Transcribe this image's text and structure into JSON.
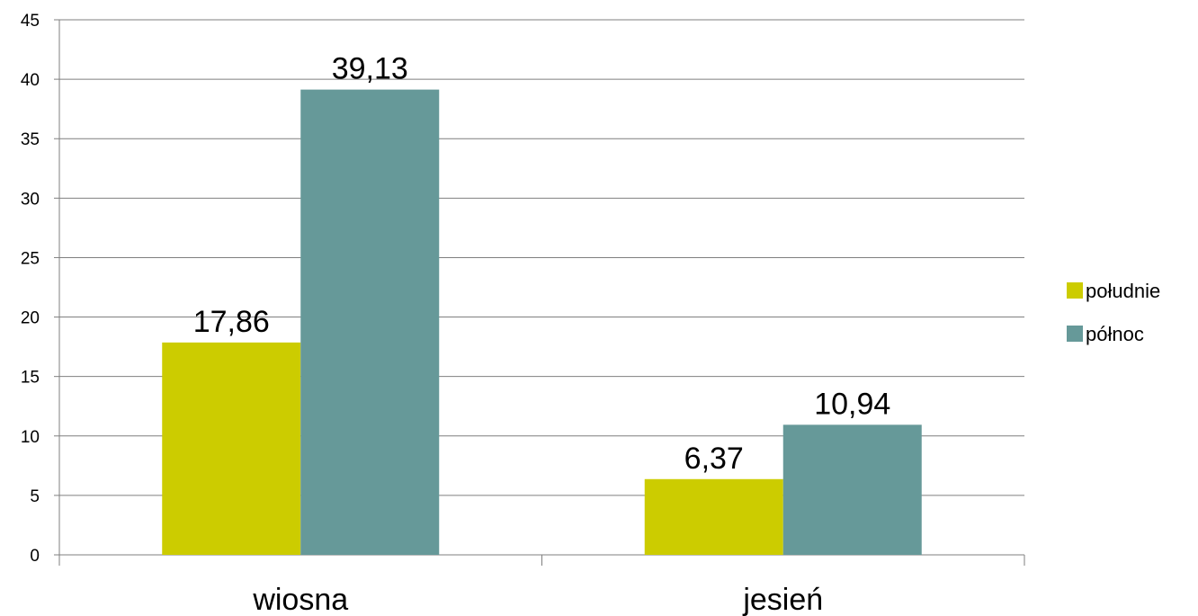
{
  "chart_data": {
    "type": "bar",
    "categories": [
      "wiosna",
      "jesień"
    ],
    "series": [
      {
        "name": "południe",
        "values": [
          17.86,
          6.37
        ],
        "labels": [
          "17,86",
          "6,37"
        ],
        "color": "#cccc00"
      },
      {
        "name": "północ",
        "values": [
          39.13,
          10.94
        ],
        "labels": [
          "39,13",
          "10,94"
        ],
        "color": "#669999"
      }
    ],
    "ylim": [
      0,
      45
    ],
    "yticks": [
      0,
      5,
      10,
      15,
      20,
      25,
      30,
      35,
      40,
      45
    ],
    "grid": true,
    "legend": "right"
  }
}
